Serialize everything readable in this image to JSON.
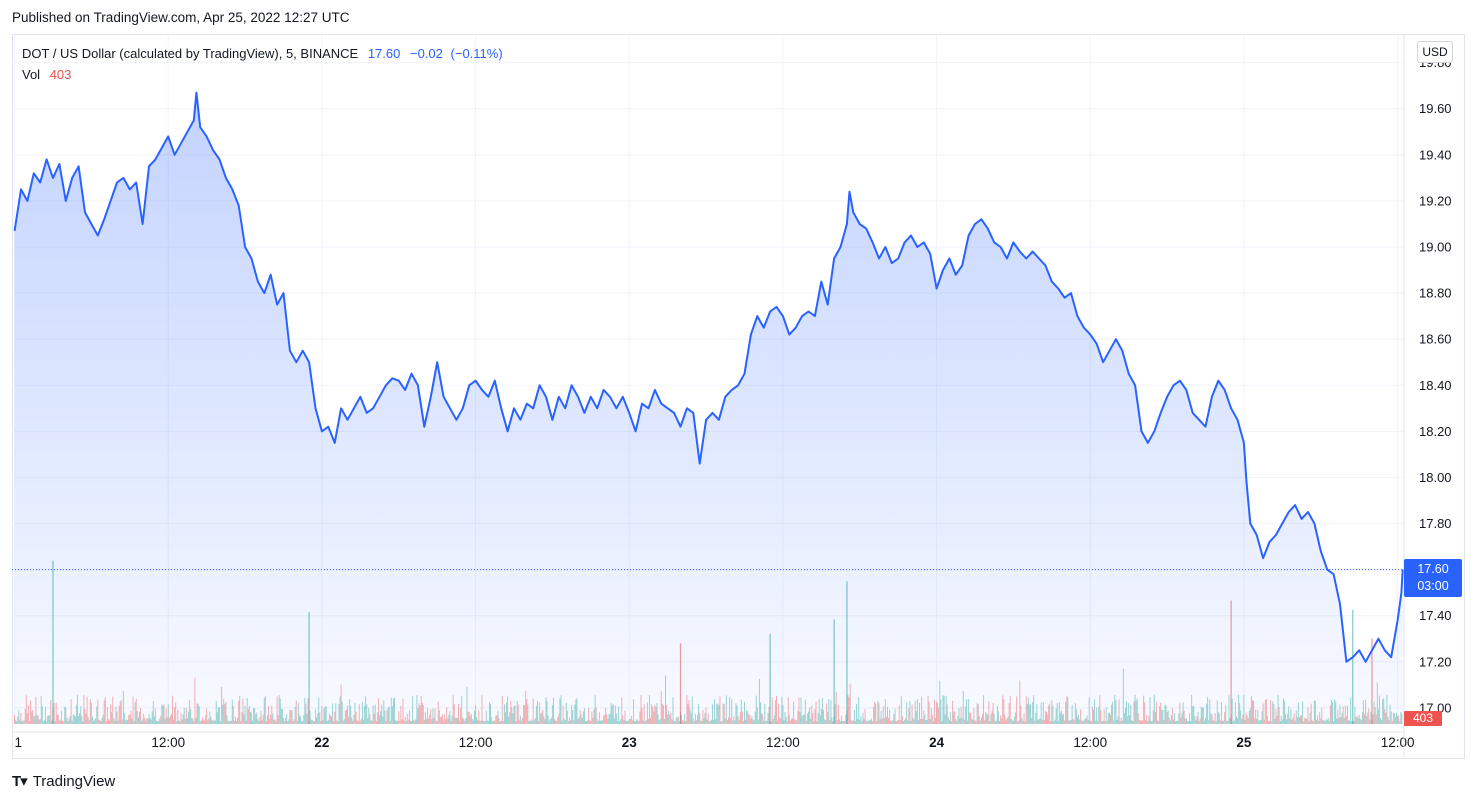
{
  "header": {
    "published": "Published on TradingView.com, Apr 25, 2022 12:27 UTC"
  },
  "legend": {
    "symbol": "DOT / US Dollar (calculated by TradingView), 5, BINANCE",
    "last": "17.60",
    "change": "−0.02",
    "change_pct": "(−0.11%)",
    "vol_label": "Vol",
    "vol_value": "403"
  },
  "currency_button": "USD",
  "price_label": {
    "price": "17.60",
    "countdown": "03:00"
  },
  "footer": {
    "brand": "TradingView"
  },
  "colors": {
    "line": "#2962ff",
    "up_volume": "#26a69a",
    "down_volume": "#ef5350",
    "grid": "#f0f3fa"
  },
  "chart_data": {
    "type": "area",
    "y_axis": {
      "ticks": [
        "17.00",
        "17.20",
        "17.40",
        "17.60",
        "17.80",
        "18.00",
        "18.20",
        "18.40",
        "18.60",
        "18.80",
        "19.00",
        "19.20",
        "19.40",
        "19.60",
        "19.80"
      ],
      "range": [
        16.93,
        19.92
      ]
    },
    "x_axis": {
      "ticks": [
        {
          "label": "1",
          "bold": false,
          "at": 0.0
        },
        {
          "label": "12:00",
          "bold": false,
          "at": 12.0
        },
        {
          "label": "22",
          "bold": true,
          "at": 24.0
        },
        {
          "label": "12:00",
          "bold": false,
          "at": 36.0
        },
        {
          "label": "23",
          "bold": true,
          "at": 48.0
        },
        {
          "label": "12:00",
          "bold": false,
          "at": 60.0
        },
        {
          "label": "24",
          "bold": true,
          "at": 72.0
        },
        {
          "label": "12:00",
          "bold": false,
          "at": 84.0
        },
        {
          "label": "25",
          "bold": true,
          "at": 96.0
        },
        {
          "label": "12:00",
          "bold": false,
          "at": 108.0
        }
      ],
      "range": [
        -0.2,
        108.5
      ],
      "unit": "hours since Apr 21 00:00 UTC"
    },
    "series": [
      {
        "name": "DOT / US Dollar",
        "points": [
          [
            0.0,
            19.07
          ],
          [
            0.5,
            19.25
          ],
          [
            1.0,
            19.2
          ],
          [
            1.5,
            19.32
          ],
          [
            2.0,
            19.28
          ],
          [
            2.5,
            19.38
          ],
          [
            3.0,
            19.3
          ],
          [
            3.5,
            19.36
          ],
          [
            4.0,
            19.2
          ],
          [
            4.5,
            19.3
          ],
          [
            5.0,
            19.35
          ],
          [
            5.5,
            19.15
          ],
          [
            6.0,
            19.1
          ],
          [
            6.5,
            19.05
          ],
          [
            7.0,
            19.12
          ],
          [
            7.5,
            19.2
          ],
          [
            8.0,
            19.28
          ],
          [
            8.5,
            19.3
          ],
          [
            9.0,
            19.25
          ],
          [
            9.5,
            19.28
          ],
          [
            10.0,
            19.1
          ],
          [
            10.5,
            19.35
          ],
          [
            11.0,
            19.38
          ],
          [
            11.5,
            19.43
          ],
          [
            12.0,
            19.48
          ],
          [
            12.5,
            19.4
          ],
          [
            13.0,
            19.45
          ],
          [
            13.5,
            19.5
          ],
          [
            14.0,
            19.55
          ],
          [
            14.2,
            19.67
          ],
          [
            14.5,
            19.52
          ],
          [
            15.0,
            19.48
          ],
          [
            15.5,
            19.42
          ],
          [
            16.0,
            19.38
          ],
          [
            16.5,
            19.3
          ],
          [
            17.0,
            19.25
          ],
          [
            17.5,
            19.18
          ],
          [
            18.0,
            19.0
          ],
          [
            18.5,
            18.95
          ],
          [
            19.0,
            18.85
          ],
          [
            19.5,
            18.8
          ],
          [
            20.0,
            18.88
          ],
          [
            20.5,
            18.75
          ],
          [
            21.0,
            18.8
          ],
          [
            21.5,
            18.55
          ],
          [
            22.0,
            18.5
          ],
          [
            22.5,
            18.55
          ],
          [
            23.0,
            18.5
          ],
          [
            23.5,
            18.3
          ],
          [
            24.0,
            18.2
          ],
          [
            24.5,
            18.22
          ],
          [
            25.0,
            18.15
          ],
          [
            25.5,
            18.3
          ],
          [
            26.0,
            18.25
          ],
          [
            26.5,
            18.3
          ],
          [
            27.0,
            18.35
          ],
          [
            27.5,
            18.28
          ],
          [
            28.0,
            18.3
          ],
          [
            28.5,
            18.35
          ],
          [
            29.0,
            18.4
          ],
          [
            29.5,
            18.43
          ],
          [
            30.0,
            18.42
          ],
          [
            30.5,
            18.38
          ],
          [
            31.0,
            18.45
          ],
          [
            31.5,
            18.4
          ],
          [
            32.0,
            18.22
          ],
          [
            32.5,
            18.35
          ],
          [
            33.0,
            18.5
          ],
          [
            33.5,
            18.35
          ],
          [
            34.0,
            18.3
          ],
          [
            34.5,
            18.25
          ],
          [
            35.0,
            18.3
          ],
          [
            35.5,
            18.4
          ],
          [
            36.0,
            18.42
          ],
          [
            36.5,
            18.38
          ],
          [
            37.0,
            18.35
          ],
          [
            37.5,
            18.42
          ],
          [
            38.0,
            18.3
          ],
          [
            38.5,
            18.2
          ],
          [
            39.0,
            18.3
          ],
          [
            39.5,
            18.25
          ],
          [
            40.0,
            18.32
          ],
          [
            40.5,
            18.3
          ],
          [
            41.0,
            18.4
          ],
          [
            41.5,
            18.35
          ],
          [
            42.0,
            18.25
          ],
          [
            42.5,
            18.35
          ],
          [
            43.0,
            18.3
          ],
          [
            43.5,
            18.4
          ],
          [
            44.0,
            18.35
          ],
          [
            44.5,
            18.28
          ],
          [
            45.0,
            18.35
          ],
          [
            45.5,
            18.3
          ],
          [
            46.0,
            18.38
          ],
          [
            46.5,
            18.35
          ],
          [
            47.0,
            18.3
          ],
          [
            47.5,
            18.35
          ],
          [
            48.0,
            18.28
          ],
          [
            48.5,
            18.2
          ],
          [
            49.0,
            18.32
          ],
          [
            49.5,
            18.3
          ],
          [
            50.0,
            18.38
          ],
          [
            50.5,
            18.32
          ],
          [
            51.0,
            18.3
          ],
          [
            51.5,
            18.28
          ],
          [
            52.0,
            18.22
          ],
          [
            52.5,
            18.3
          ],
          [
            53.0,
            18.28
          ],
          [
            53.5,
            18.06
          ],
          [
            54.0,
            18.25
          ],
          [
            54.5,
            18.28
          ],
          [
            55.0,
            18.25
          ],
          [
            55.5,
            18.35
          ],
          [
            56.0,
            18.38
          ],
          [
            56.5,
            18.4
          ],
          [
            57.0,
            18.45
          ],
          [
            57.5,
            18.62
          ],
          [
            58.0,
            18.7
          ],
          [
            58.5,
            18.65
          ],
          [
            59.0,
            18.72
          ],
          [
            59.5,
            18.74
          ],
          [
            60.0,
            18.7
          ],
          [
            60.5,
            18.62
          ],
          [
            61.0,
            18.65
          ],
          [
            61.5,
            18.7
          ],
          [
            62.0,
            18.72
          ],
          [
            62.5,
            18.7
          ],
          [
            63.0,
            18.85
          ],
          [
            63.5,
            18.75
          ],
          [
            64.0,
            18.95
          ],
          [
            64.5,
            19.0
          ],
          [
            65.0,
            19.1
          ],
          [
            65.2,
            19.24
          ],
          [
            65.5,
            19.15
          ],
          [
            66.0,
            19.1
          ],
          [
            66.5,
            19.08
          ],
          [
            67.0,
            19.02
          ],
          [
            67.5,
            18.95
          ],
          [
            68.0,
            19.0
          ],
          [
            68.5,
            18.93
          ],
          [
            69.0,
            18.95
          ],
          [
            69.5,
            19.02
          ],
          [
            70.0,
            19.05
          ],
          [
            70.5,
            19.0
          ],
          [
            71.0,
            19.02
          ],
          [
            71.5,
            18.97
          ],
          [
            72.0,
            18.82
          ],
          [
            72.5,
            18.9
          ],
          [
            73.0,
            18.95
          ],
          [
            73.5,
            18.88
          ],
          [
            74.0,
            18.92
          ],
          [
            74.5,
            19.05
          ],
          [
            75.0,
            19.1
          ],
          [
            75.5,
            19.12
          ],
          [
            76.0,
            19.08
          ],
          [
            76.5,
            19.02
          ],
          [
            77.0,
            19.0
          ],
          [
            77.5,
            18.95
          ],
          [
            78.0,
            19.02
          ],
          [
            78.5,
            18.98
          ],
          [
            79.0,
            18.95
          ],
          [
            79.5,
            18.98
          ],
          [
            80.0,
            18.95
          ],
          [
            80.5,
            18.92
          ],
          [
            81.0,
            18.85
          ],
          [
            81.5,
            18.82
          ],
          [
            82.0,
            18.78
          ],
          [
            82.5,
            18.8
          ],
          [
            83.0,
            18.7
          ],
          [
            83.5,
            18.65
          ],
          [
            84.0,
            18.62
          ],
          [
            84.5,
            18.58
          ],
          [
            85.0,
            18.5
          ],
          [
            85.5,
            18.55
          ],
          [
            86.0,
            18.6
          ],
          [
            86.5,
            18.55
          ],
          [
            87.0,
            18.45
          ],
          [
            87.5,
            18.4
          ],
          [
            88.0,
            18.2
          ],
          [
            88.5,
            18.15
          ],
          [
            89.0,
            18.2
          ],
          [
            89.5,
            18.28
          ],
          [
            90.0,
            18.35
          ],
          [
            90.5,
            18.4
          ],
          [
            91.0,
            18.42
          ],
          [
            91.5,
            18.38
          ],
          [
            92.0,
            18.28
          ],
          [
            92.5,
            18.25
          ],
          [
            93.0,
            18.22
          ],
          [
            93.5,
            18.35
          ],
          [
            94.0,
            18.42
          ],
          [
            94.5,
            18.38
          ],
          [
            95.0,
            18.3
          ],
          [
            95.5,
            18.25
          ],
          [
            96.0,
            18.15
          ],
          [
            96.2,
            17.98
          ],
          [
            96.5,
            17.8
          ],
          [
            97.0,
            17.75
          ],
          [
            97.5,
            17.65
          ],
          [
            98.0,
            17.72
          ],
          [
            98.5,
            17.75
          ],
          [
            99.0,
            17.8
          ],
          [
            99.5,
            17.85
          ],
          [
            100.0,
            17.88
          ],
          [
            100.5,
            17.82
          ],
          [
            101.0,
            17.85
          ],
          [
            101.5,
            17.8
          ],
          [
            102.0,
            17.68
          ],
          [
            102.5,
            17.6
          ],
          [
            103.0,
            17.58
          ],
          [
            103.5,
            17.45
          ],
          [
            104.0,
            17.2
          ],
          [
            104.5,
            17.22
          ],
          [
            105.0,
            17.25
          ],
          [
            105.5,
            17.2
          ],
          [
            106.0,
            17.25
          ],
          [
            106.5,
            17.3
          ],
          [
            107.0,
            17.25
          ],
          [
            107.5,
            17.22
          ],
          [
            108.0,
            17.38
          ],
          [
            108.3,
            17.5
          ],
          [
            108.4,
            17.6
          ]
        ]
      }
    ],
    "volume": {
      "name": "Vol",
      "spikes": [
        {
          "t": 3.0,
          "v": 172,
          "up": true
        },
        {
          "t": 23.0,
          "v": 118,
          "up": true
        },
        {
          "t": 52.0,
          "v": 85,
          "up": false
        },
        {
          "t": 65.0,
          "v": 150,
          "up": true
        },
        {
          "t": 95.0,
          "v": 130,
          "up": false
        },
        {
          "t": 64.0,
          "v": 110,
          "up": true
        },
        {
          "t": 59.0,
          "v": 95,
          "up": true
        },
        {
          "t": 104.5,
          "v": 120,
          "up": true
        },
        {
          "t": 106.0,
          "v": 90,
          "up": false
        }
      ]
    },
    "title": "",
    "xlabel": "",
    "ylabel": "",
    "grid": true,
    "legend": "top-left"
  }
}
